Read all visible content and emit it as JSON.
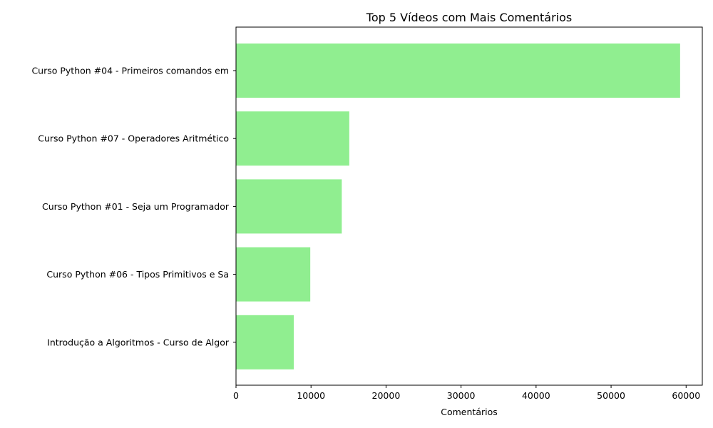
{
  "chart_data": {
    "type": "bar",
    "orientation": "horizontal",
    "title": "Top 5 Vídeos com Mais Comentários",
    "xlabel": "Comentários",
    "ylabel": "",
    "categories": [
      "Curso Python #04 - Primeiros comandos em",
      "Curso Python #07 - Operadores Aritmético",
      "Curso Python #01 - Seja um Programador",
      "Curso Python #06 - Tipos Primitivos e Sa",
      "Introdução a Algoritmos - Curso de Algor"
    ],
    "values": [
      59200,
      15100,
      14100,
      9900,
      7700
    ],
    "xlim": [
      0,
      62160
    ],
    "xticks": [
      0,
      10000,
      20000,
      30000,
      40000,
      50000,
      60000
    ],
    "bar_color": "#90ee90",
    "grid": false,
    "legend": "none"
  }
}
